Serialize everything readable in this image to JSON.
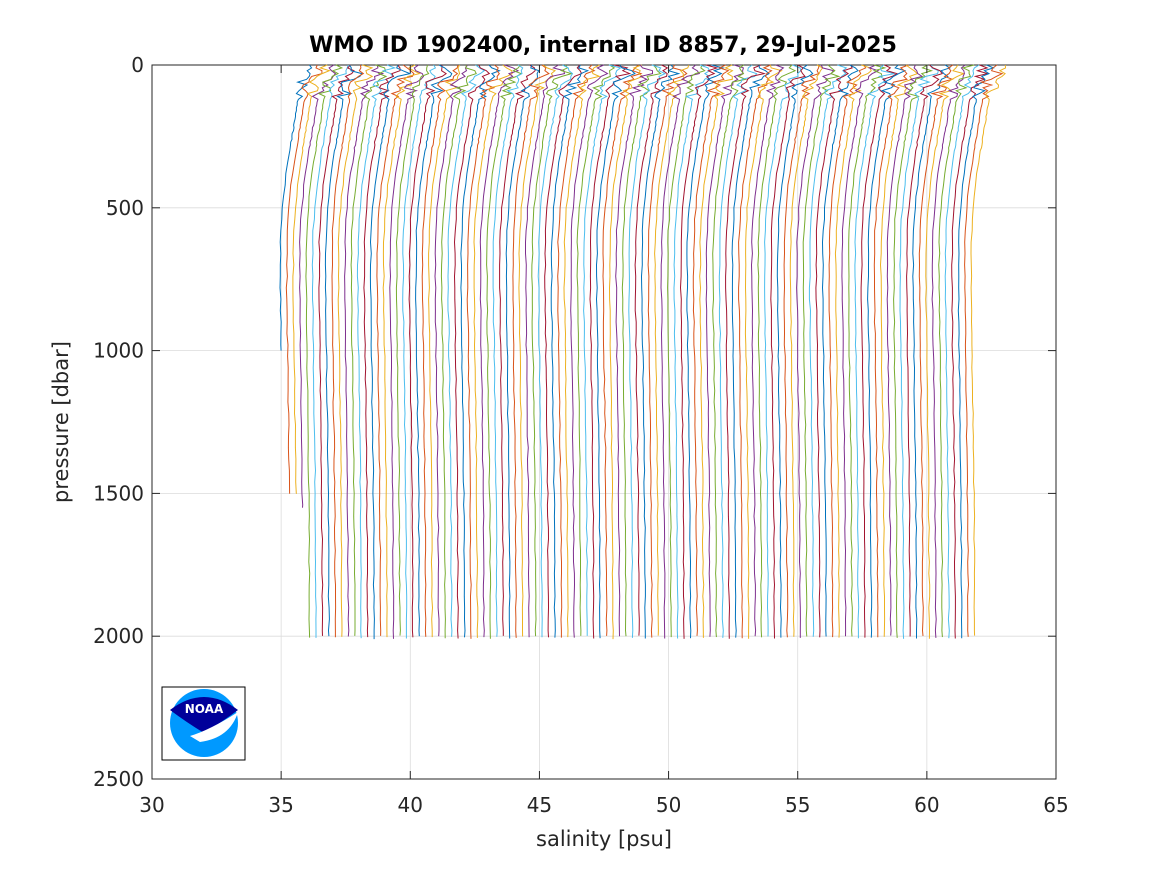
{
  "chart_data": {
    "type": "line",
    "title": "WMO ID 1902400, internal ID 8857, 29-Jul-2025",
    "xlabel": "salinity [psu]",
    "ylabel": "pressure [dbar]",
    "xlim": [
      30,
      65
    ],
    "ylim": [
      0,
      2500
    ],
    "y_reversed": true,
    "xticks": [
      30,
      35,
      40,
      45,
      50,
      55,
      60,
      65
    ],
    "yticks": [
      0,
      500,
      1000,
      1500,
      2000,
      2500
    ],
    "grid": true,
    "legend": "none",
    "series_description": "Waterfall of ~108 salinity profiles, each offset by about 0.25 psu",
    "n_profiles": 108,
    "profile_offset": 0.25,
    "first_profile_base_salinity": 35.0,
    "profile_shape_pressure": [
      0,
      30,
      60,
      100,
      150,
      200,
      250,
      300,
      400,
      500,
      600,
      800,
      1000,
      1200,
      1400,
      1600,
      1800,
      2000
    ],
    "profile_shape_anomaly": [
      1.1,
      1.25,
      0.85,
      0.7,
      0.6,
      0.52,
      0.42,
      0.33,
      0.16,
      0.05,
      -0.02,
      -0.03,
      0.0,
      0.03,
      0.06,
      0.08,
      0.09,
      0.1
    ],
    "early_profile_max_pressure": [
      1000,
      1500,
      1500,
      1550
    ],
    "max_pressure_default": 2010,
    "colors": [
      "#0072bd",
      "#d95319",
      "#edb120",
      "#7e2f8e",
      "#77ac30",
      "#4dbeee",
      "#a2142f"
    ],
    "logo": {
      "text": "NOAA",
      "colors": [
        "#00009a",
        "#0099ff"
      ]
    }
  }
}
